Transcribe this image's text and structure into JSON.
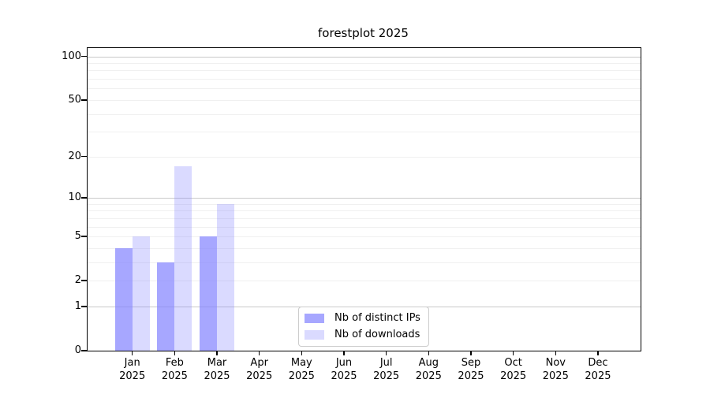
{
  "chart_data": {
    "type": "bar",
    "title": "forestplot 2025",
    "categories": [
      "Jan 2025",
      "Feb 2025",
      "Mar 2025",
      "Apr 2025",
      "May 2025",
      "Jun 2025",
      "Jul 2025",
      "Aug 2025",
      "Sep 2025",
      "Oct 2025",
      "Nov 2025",
      "Dec 2025"
    ],
    "series": [
      {
        "name": "Nb of distinct IPs",
        "color": "#8585ff",
        "opacity": 0.72,
        "values": [
          4,
          3,
          5,
          0,
          0,
          0,
          0,
          0,
          0,
          0,
          0,
          0
        ]
      },
      {
        "name": "Nb of downloads",
        "color": "#8585ff",
        "opacity": 0.3,
        "values": [
          5,
          17,
          9,
          0,
          0,
          0,
          0,
          0,
          0,
          0,
          0,
          0
        ]
      }
    ],
    "yscale": "log1p",
    "ylim": [
      0,
      115
    ],
    "ytick_values": [
      0,
      1,
      2,
      5,
      10,
      20,
      50,
      100
    ],
    "ytick_labels": [
      "0",
      "1",
      "2",
      "5",
      "10",
      "20",
      "50",
      "100"
    ],
    "gridlines": {
      "major": [
        1,
        10,
        100
      ],
      "minor": [
        2,
        3,
        4,
        5,
        6,
        7,
        8,
        9,
        20,
        30,
        40,
        50,
        60,
        70,
        80,
        90
      ]
    },
    "grid": true,
    "legend_position": "lower center",
    "xlabel": "",
    "ylabel": ""
  },
  "colors": {
    "axes_spine": "#000000",
    "grid_major": "#c9c9c9",
    "grid_minor": "#f0f0f0",
    "legend_border": "#cccccc",
    "background": "#ffffff",
    "text": "#000000"
  }
}
